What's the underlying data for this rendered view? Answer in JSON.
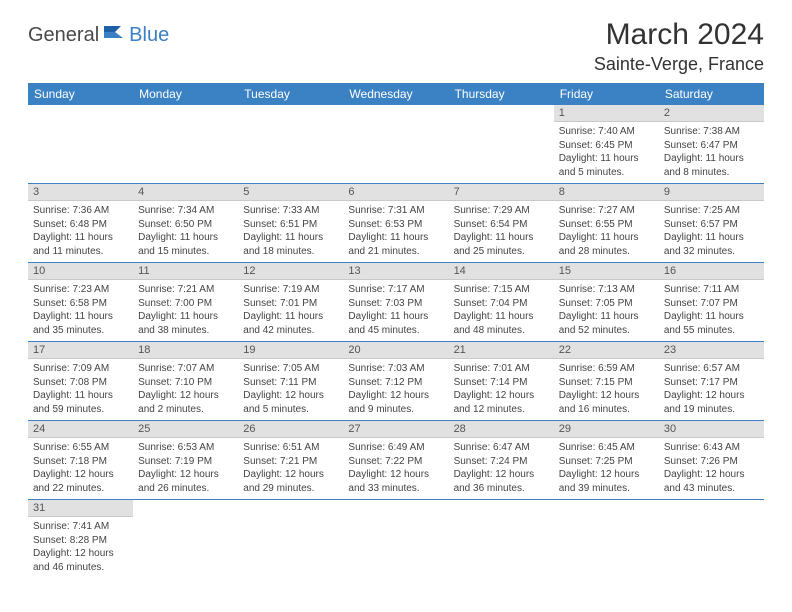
{
  "logo": {
    "part1": "General",
    "part2": "Blue"
  },
  "title": "March 2024",
  "location": "Sainte-Verge, France",
  "colors": {
    "header_bg": "#3b82c4",
    "header_text": "#ffffff",
    "daynum_bg": "#e1e1e1",
    "row_border": "#3b82c4",
    "logo_blue": "#3b7fc4",
    "logo_gray": "#4a4a4a"
  },
  "weekdays": [
    "Sunday",
    "Monday",
    "Tuesday",
    "Wednesday",
    "Thursday",
    "Friday",
    "Saturday"
  ],
  "weeks": [
    [
      null,
      null,
      null,
      null,
      null,
      {
        "n": "1",
        "sr": "Sunrise: 7:40 AM",
        "ss": "Sunset: 6:45 PM",
        "dl": "Daylight: 11 hours and 5 minutes."
      },
      {
        "n": "2",
        "sr": "Sunrise: 7:38 AM",
        "ss": "Sunset: 6:47 PM",
        "dl": "Daylight: 11 hours and 8 minutes."
      }
    ],
    [
      {
        "n": "3",
        "sr": "Sunrise: 7:36 AM",
        "ss": "Sunset: 6:48 PM",
        "dl": "Daylight: 11 hours and 11 minutes."
      },
      {
        "n": "4",
        "sr": "Sunrise: 7:34 AM",
        "ss": "Sunset: 6:50 PM",
        "dl": "Daylight: 11 hours and 15 minutes."
      },
      {
        "n": "5",
        "sr": "Sunrise: 7:33 AM",
        "ss": "Sunset: 6:51 PM",
        "dl": "Daylight: 11 hours and 18 minutes."
      },
      {
        "n": "6",
        "sr": "Sunrise: 7:31 AM",
        "ss": "Sunset: 6:53 PM",
        "dl": "Daylight: 11 hours and 21 minutes."
      },
      {
        "n": "7",
        "sr": "Sunrise: 7:29 AM",
        "ss": "Sunset: 6:54 PM",
        "dl": "Daylight: 11 hours and 25 minutes."
      },
      {
        "n": "8",
        "sr": "Sunrise: 7:27 AM",
        "ss": "Sunset: 6:55 PM",
        "dl": "Daylight: 11 hours and 28 minutes."
      },
      {
        "n": "9",
        "sr": "Sunrise: 7:25 AM",
        "ss": "Sunset: 6:57 PM",
        "dl": "Daylight: 11 hours and 32 minutes."
      }
    ],
    [
      {
        "n": "10",
        "sr": "Sunrise: 7:23 AM",
        "ss": "Sunset: 6:58 PM",
        "dl": "Daylight: 11 hours and 35 minutes."
      },
      {
        "n": "11",
        "sr": "Sunrise: 7:21 AM",
        "ss": "Sunset: 7:00 PM",
        "dl": "Daylight: 11 hours and 38 minutes."
      },
      {
        "n": "12",
        "sr": "Sunrise: 7:19 AM",
        "ss": "Sunset: 7:01 PM",
        "dl": "Daylight: 11 hours and 42 minutes."
      },
      {
        "n": "13",
        "sr": "Sunrise: 7:17 AM",
        "ss": "Sunset: 7:03 PM",
        "dl": "Daylight: 11 hours and 45 minutes."
      },
      {
        "n": "14",
        "sr": "Sunrise: 7:15 AM",
        "ss": "Sunset: 7:04 PM",
        "dl": "Daylight: 11 hours and 48 minutes."
      },
      {
        "n": "15",
        "sr": "Sunrise: 7:13 AM",
        "ss": "Sunset: 7:05 PM",
        "dl": "Daylight: 11 hours and 52 minutes."
      },
      {
        "n": "16",
        "sr": "Sunrise: 7:11 AM",
        "ss": "Sunset: 7:07 PM",
        "dl": "Daylight: 11 hours and 55 minutes."
      }
    ],
    [
      {
        "n": "17",
        "sr": "Sunrise: 7:09 AM",
        "ss": "Sunset: 7:08 PM",
        "dl": "Daylight: 11 hours and 59 minutes."
      },
      {
        "n": "18",
        "sr": "Sunrise: 7:07 AM",
        "ss": "Sunset: 7:10 PM",
        "dl": "Daylight: 12 hours and 2 minutes."
      },
      {
        "n": "19",
        "sr": "Sunrise: 7:05 AM",
        "ss": "Sunset: 7:11 PM",
        "dl": "Daylight: 12 hours and 5 minutes."
      },
      {
        "n": "20",
        "sr": "Sunrise: 7:03 AM",
        "ss": "Sunset: 7:12 PM",
        "dl": "Daylight: 12 hours and 9 minutes."
      },
      {
        "n": "21",
        "sr": "Sunrise: 7:01 AM",
        "ss": "Sunset: 7:14 PM",
        "dl": "Daylight: 12 hours and 12 minutes."
      },
      {
        "n": "22",
        "sr": "Sunrise: 6:59 AM",
        "ss": "Sunset: 7:15 PM",
        "dl": "Daylight: 12 hours and 16 minutes."
      },
      {
        "n": "23",
        "sr": "Sunrise: 6:57 AM",
        "ss": "Sunset: 7:17 PM",
        "dl": "Daylight: 12 hours and 19 minutes."
      }
    ],
    [
      {
        "n": "24",
        "sr": "Sunrise: 6:55 AM",
        "ss": "Sunset: 7:18 PM",
        "dl": "Daylight: 12 hours and 22 minutes."
      },
      {
        "n": "25",
        "sr": "Sunrise: 6:53 AM",
        "ss": "Sunset: 7:19 PM",
        "dl": "Daylight: 12 hours and 26 minutes."
      },
      {
        "n": "26",
        "sr": "Sunrise: 6:51 AM",
        "ss": "Sunset: 7:21 PM",
        "dl": "Daylight: 12 hours and 29 minutes."
      },
      {
        "n": "27",
        "sr": "Sunrise: 6:49 AM",
        "ss": "Sunset: 7:22 PM",
        "dl": "Daylight: 12 hours and 33 minutes."
      },
      {
        "n": "28",
        "sr": "Sunrise: 6:47 AM",
        "ss": "Sunset: 7:24 PM",
        "dl": "Daylight: 12 hours and 36 minutes."
      },
      {
        "n": "29",
        "sr": "Sunrise: 6:45 AM",
        "ss": "Sunset: 7:25 PM",
        "dl": "Daylight: 12 hours and 39 minutes."
      },
      {
        "n": "30",
        "sr": "Sunrise: 6:43 AM",
        "ss": "Sunset: 7:26 PM",
        "dl": "Daylight: 12 hours and 43 minutes."
      }
    ],
    [
      {
        "n": "31",
        "sr": "Sunrise: 7:41 AM",
        "ss": "Sunset: 8:28 PM",
        "dl": "Daylight: 12 hours and 46 minutes."
      },
      null,
      null,
      null,
      null,
      null,
      null
    ]
  ]
}
